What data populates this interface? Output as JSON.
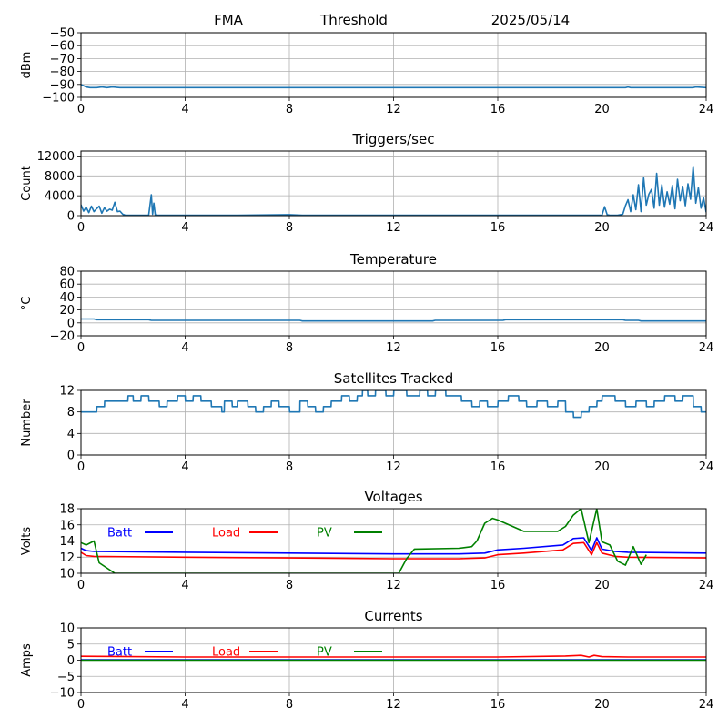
{
  "header": {
    "station": "FMA",
    "mode": "Threshold",
    "date": "2025/05/14"
  },
  "chart_data": [
    {
      "id": "signal",
      "type": "line",
      "title": "",
      "xlabel": "",
      "ylabel": "dBm",
      "xlim": [
        0,
        24
      ],
      "ylim": [
        -100,
        -50
      ],
      "xticks": [
        0,
        4,
        8,
        12,
        16,
        20,
        24
      ],
      "yticks": [
        -100,
        -90,
        -80,
        -70,
        -60,
        -50
      ],
      "grid": true,
      "series": [
        {
          "color": "#1f77b4",
          "x": [
            0,
            0.1,
            0.2,
            0.35,
            0.6,
            0.8,
            1.0,
            1.2,
            1.5,
            2,
            4,
            8,
            12,
            16,
            20,
            20.9,
            21.0,
            21.1,
            22,
            23,
            23.5,
            23.6,
            24
          ],
          "y": [
            -90,
            -91,
            -92,
            -92.5,
            -92.5,
            -92,
            -92.5,
            -92,
            -92.5,
            -92.5,
            -92.5,
            -92.5,
            -92.5,
            -92.5,
            -92.5,
            -92.5,
            -92,
            -92.5,
            -92.5,
            -92.5,
            -92.5,
            -92,
            -92.5
          ]
        }
      ]
    },
    {
      "id": "triggers",
      "type": "line",
      "title": "Triggers/sec",
      "xlabel": "",
      "ylabel": "Count",
      "xlim": [
        0,
        24
      ],
      "ylim": [
        0,
        13000
      ],
      "xticks": [
        0,
        4,
        8,
        12,
        16,
        20,
        24
      ],
      "yticks": [
        0,
        4000,
        8000,
        12000
      ],
      "grid": true,
      "series": [
        {
          "color": "#1f77b4",
          "x": [
            0,
            0.1,
            0.2,
            0.3,
            0.4,
            0.5,
            0.6,
            0.7,
            0.8,
            0.9,
            1.0,
            1.1,
            1.2,
            1.3,
            1.4,
            1.5,
            1.6,
            1.7,
            2.6,
            2.7,
            2.75,
            2.8,
            2.85,
            2.9,
            3.0,
            6,
            8,
            8.5,
            11,
            14,
            16,
            20,
            20.1,
            20.2,
            20.3,
            20.6,
            20.8,
            20.9,
            21.0,
            21.1,
            21.2,
            21.3,
            21.4,
            21.5,
            21.6,
            21.7,
            21.8,
            21.9,
            22.0,
            22.1,
            22.2,
            22.3,
            22.4,
            22.5,
            22.6,
            22.7,
            22.8,
            22.9,
            23.0,
            23.1,
            23.2,
            23.3,
            23.4,
            23.5,
            23.6,
            23.7,
            23.8,
            23.9,
            24
          ],
          "y": [
            2200,
            900,
            1700,
            600,
            1900,
            800,
            1400,
            1900,
            500,
            1600,
            900,
            1300,
            1100,
            2700,
            800,
            900,
            300,
            100,
            100,
            4200,
            300,
            2500,
            200,
            100,
            100,
            100,
            200,
            100,
            100,
            100,
            100,
            100,
            1800,
            200,
            100,
            100,
            300,
            2000,
            3200,
            800,
            4200,
            1200,
            6200,
            800,
            7600,
            2100,
            4300,
            5300,
            1500,
            8500,
            2100,
            6200,
            1700,
            4800,
            2300,
            6100,
            1400,
            7300,
            3000,
            5900,
            2000,
            6400,
            3300,
            9900,
            2500,
            5600,
            1500,
            3600,
            700
          ]
        }
      ]
    },
    {
      "id": "temperature",
      "type": "line",
      "title": "Temperature",
      "xlabel": "",
      "ylabel": "°C",
      "xlim": [
        0,
        24
      ],
      "ylim": [
        -20,
        80
      ],
      "xticks": [
        0,
        4,
        8,
        12,
        16,
        20,
        24
      ],
      "yticks": [
        -20,
        0,
        20,
        40,
        60,
        80
      ],
      "grid": true,
      "series": [
        {
          "color": "#1f77b4",
          "x": [
            0,
            0.5,
            0.6,
            2.6,
            2.7,
            8.4,
            8.5,
            13.5,
            13.6,
            16.2,
            16.3,
            20.8,
            20.9,
            21.4,
            21.5,
            24
          ],
          "y": [
            6,
            6,
            5,
            5,
            4,
            4,
            3,
            3,
            4,
            4,
            5,
            5,
            4,
            4,
            3,
            3
          ]
        }
      ]
    },
    {
      "id": "satellites",
      "type": "line",
      "title": "Satellites Tracked",
      "xlabel": "",
      "ylabel": "Number",
      "xlim": [
        0,
        24
      ],
      "ylim": [
        0,
        12
      ],
      "xticks": [
        0,
        4,
        8,
        12,
        16,
        20,
        24
      ],
      "yticks": [
        0,
        4,
        8,
        12
      ],
      "grid": true,
      "series": [
        {
          "color": "#1f77b4",
          "x": [
            0,
            0.6,
            0.61,
            0.9,
            0.91,
            1.8,
            1.81,
            2.0,
            2.01,
            2.3,
            2.31,
            2.6,
            2.61,
            3.0,
            3.01,
            3.3,
            3.31,
            3.7,
            3.71,
            4.0,
            4.01,
            4.3,
            4.31,
            4.6,
            4.61,
            5.0,
            5.01,
            5.4,
            5.41,
            5.5,
            5.51,
            5.8,
            5.81,
            6.0,
            6.01,
            6.4,
            6.41,
            6.7,
            6.71,
            7.0,
            7.01,
            7.3,
            7.31,
            7.6,
            7.61,
            8.0,
            8.01,
            8.4,
            8.41,
            8.7,
            8.71,
            9.0,
            9.01,
            9.3,
            9.31,
            9.6,
            9.61,
            10.0,
            10.01,
            10.3,
            10.31,
            10.6,
            10.61,
            10.8,
            10.81,
            11.0,
            11.01,
            11.3,
            11.31,
            11.7,
            11.71,
            12.0,
            12.01,
            12.5,
            12.51,
            13.0,
            13.01,
            13.3,
            13.31,
            13.6,
            13.61,
            14.0,
            14.01,
            14.6,
            14.61,
            15.0,
            15.01,
            15.3,
            15.31,
            15.6,
            15.61,
            16.0,
            16.01,
            16.4,
            16.41,
            16.8,
            16.81,
            17.1,
            17.11,
            17.5,
            17.51,
            17.9,
            17.91,
            18.3,
            18.31,
            18.6,
            18.61,
            18.9,
            18.91,
            19.2,
            19.21,
            19.5,
            19.51,
            19.8,
            19.81,
            20.0,
            20.01,
            20.5,
            20.51,
            20.9,
            20.91,
            21.3,
            21.31,
            21.7,
            21.71,
            22.0,
            22.01,
            22.4,
            22.41,
            22.8,
            22.81,
            23.1,
            23.11,
            23.5,
            23.51,
            23.8,
            23.81,
            24
          ],
          "y": [
            8,
            8,
            9,
            9,
            10,
            10,
            11,
            11,
            10,
            10,
            11,
            11,
            10,
            10,
            9,
            9,
            10,
            10,
            11,
            11,
            10,
            10,
            11,
            11,
            10,
            10,
            9,
            9,
            8,
            8,
            10,
            10,
            9,
            9,
            10,
            10,
            9,
            9,
            8,
            8,
            9,
            9,
            10,
            10,
            9,
            9,
            8,
            8,
            10,
            10,
            9,
            9,
            8,
            8,
            9,
            9,
            10,
            10,
            11,
            11,
            10,
            10,
            11,
            11,
            12,
            12,
            11,
            11,
            12,
            12,
            11,
            11,
            12,
            12,
            11,
            11,
            12,
            12,
            11,
            11,
            12,
            12,
            11,
            11,
            10,
            10,
            9,
            9,
            10,
            10,
            9,
            9,
            10,
            10,
            11,
            11,
            10,
            10,
            9,
            9,
            10,
            10,
            9,
            9,
            10,
            10,
            8,
            8,
            7,
            7,
            8,
            8,
            9,
            9,
            10,
            10,
            11,
            11,
            10,
            10,
            9,
            9,
            10,
            10,
            9,
            9,
            10,
            10,
            11,
            11,
            10,
            10,
            11,
            11,
            9,
            9,
            8,
            8
          ]
        }
      ]
    },
    {
      "id": "voltages",
      "type": "line",
      "title": "Voltages",
      "xlabel": "",
      "ylabel": "Volts",
      "xlim": [
        0,
        24
      ],
      "ylim": [
        10,
        18
      ],
      "xticks": [
        0,
        4,
        8,
        12,
        16,
        20,
        24
      ],
      "yticks": [
        10,
        12,
        14,
        16,
        18
      ],
      "grid": true,
      "legend": "top-left",
      "series": [
        {
          "name": "Batt",
          "color": "#0000ff",
          "x": [
            0,
            0.2,
            0.5,
            4,
            8,
            12,
            14.5,
            15.5,
            16,
            17,
            18.5,
            18.9,
            19.3,
            19.6,
            19.8,
            20,
            20.5,
            21,
            24
          ],
          "y": [
            13.1,
            12.8,
            12.7,
            12.6,
            12.5,
            12.4,
            12.4,
            12.5,
            12.9,
            13.1,
            13.5,
            14.3,
            14.4,
            12.8,
            14.4,
            13.0,
            12.7,
            12.6,
            12.5
          ]
        },
        {
          "name": "Load",
          "color": "#ff0000",
          "x": [
            0,
            0.2,
            0.5,
            4,
            8,
            12,
            14.5,
            15.5,
            16,
            17,
            18.5,
            18.9,
            19.3,
            19.6,
            19.8,
            20,
            20.5,
            21,
            24
          ],
          "y": [
            12.6,
            12.2,
            12.1,
            12.0,
            11.9,
            11.8,
            11.8,
            11.9,
            12.3,
            12.5,
            12.9,
            13.7,
            13.8,
            12.3,
            13.8,
            12.5,
            12.1,
            12.0,
            11.9
          ]
        },
        {
          "name": "PV",
          "color": "#008000",
          "x": [
            0,
            0.2,
            0.5,
            0.7,
            1.3,
            12.2,
            12.5,
            12.8,
            14.5,
            15.0,
            15.2,
            15.5,
            15.8,
            16,
            17,
            18.3,
            18.6,
            18.9,
            19.2,
            19.5,
            19.8,
            20,
            20.3,
            20.6,
            20.9,
            21.2,
            21.5,
            21.7
          ],
          "y": [
            13.8,
            13.5,
            14.0,
            11.3,
            10.0,
            10.0,
            11.8,
            13.0,
            13.1,
            13.3,
            14.0,
            16.2,
            16.8,
            16.6,
            15.2,
            15.2,
            15.8,
            17.2,
            18.0,
            13.8,
            18.0,
            13.9,
            13.5,
            11.5,
            11.0,
            13.3,
            11.1,
            12.3
          ]
        }
      ]
    },
    {
      "id": "currents",
      "type": "line",
      "title": "Currents",
      "xlabel": "",
      "ylabel": "Amps",
      "xlim": [
        0,
        24
      ],
      "ylim": [
        -10,
        10
      ],
      "xticks": [
        0,
        4,
        8,
        12,
        16,
        20,
        24
      ],
      "yticks": [
        -10,
        -5,
        0,
        5,
        10
      ],
      "grid": true,
      "legend": "top-left",
      "series": [
        {
          "name": "Batt",
          "color": "#0000ff",
          "x": [
            0,
            24
          ],
          "y": [
            0.1,
            0.1
          ]
        },
        {
          "name": "Load",
          "color": "#ff0000",
          "x": [
            0,
            4,
            8,
            12,
            16,
            18.6,
            19.2,
            19.5,
            19.7,
            20,
            21,
            24
          ],
          "y": [
            1.2,
            1.0,
            1.0,
            1.0,
            1.0,
            1.3,
            1.5,
            1.0,
            1.5,
            1.1,
            1.0,
            1.0
          ]
        },
        {
          "name": "PV",
          "color": "#008000",
          "x": [
            0,
            24
          ],
          "y": [
            0.0,
            0.0
          ]
        }
      ]
    }
  ]
}
